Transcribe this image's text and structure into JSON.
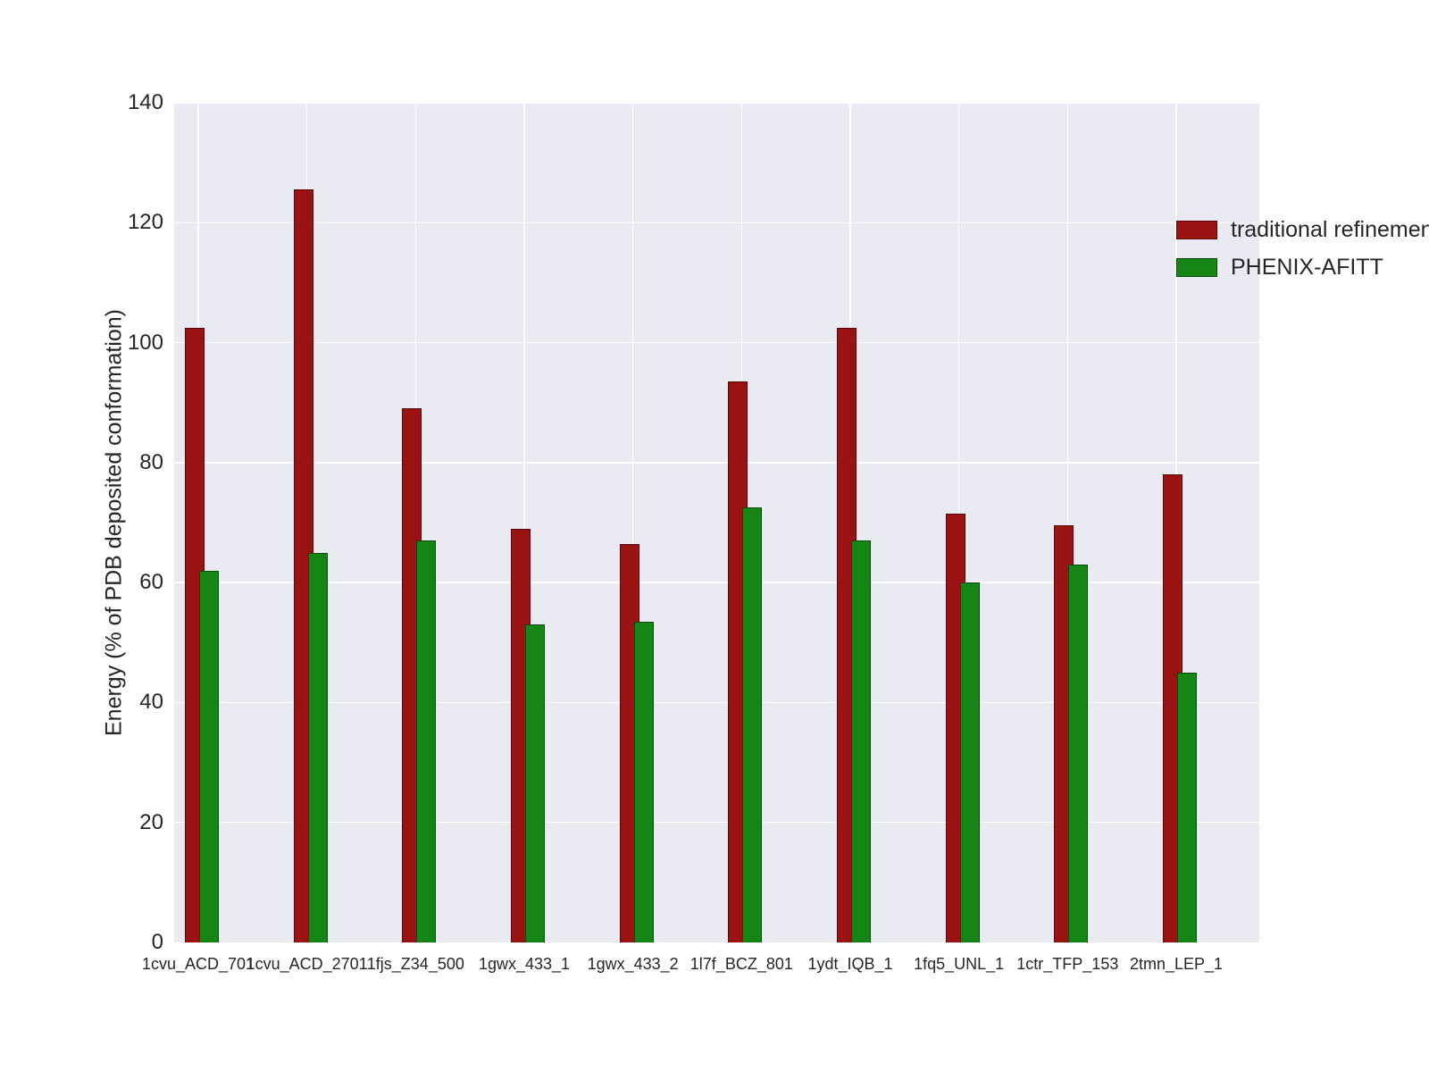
{
  "figure": {
    "background": "#ffffff",
    "plot_background": "#eaeaf2",
    "grid_color": "#ffffff",
    "tick_color": "#262626"
  },
  "chart_data": {
    "type": "bar",
    "title": "",
    "xlabel": "",
    "ylabel": "Energy (% of PDB deposited conformation)",
    "ylim": [
      0,
      140
    ],
    "yticks": [
      0,
      20,
      40,
      60,
      80,
      100,
      120,
      140
    ],
    "grid": true,
    "legend_position": "upper right",
    "categories": [
      "1cvu_ACD_701",
      "1cvu_ACD_2701",
      "1fjs_Z34_500",
      "1gwx_433_1",
      "1gwx_433_2",
      "1l7f_BCZ_801",
      "1ydt_IQB_1",
      "1fq5_UNL_1",
      "1ctr_TFP_153",
      "2tmn_LEP_1"
    ],
    "series": [
      {
        "name": "traditional refinement",
        "color": "#9a1212",
        "values": [
          102.5,
          125.5,
          89,
          69,
          66.5,
          93.5,
          102.5,
          71.5,
          69.5,
          78
        ]
      },
      {
        "name": "PHENIX-AFITT",
        "color": "#158515",
        "values": [
          62,
          65,
          67,
          53,
          53.5,
          72.5,
          67,
          60,
          63,
          45
        ]
      }
    ]
  }
}
